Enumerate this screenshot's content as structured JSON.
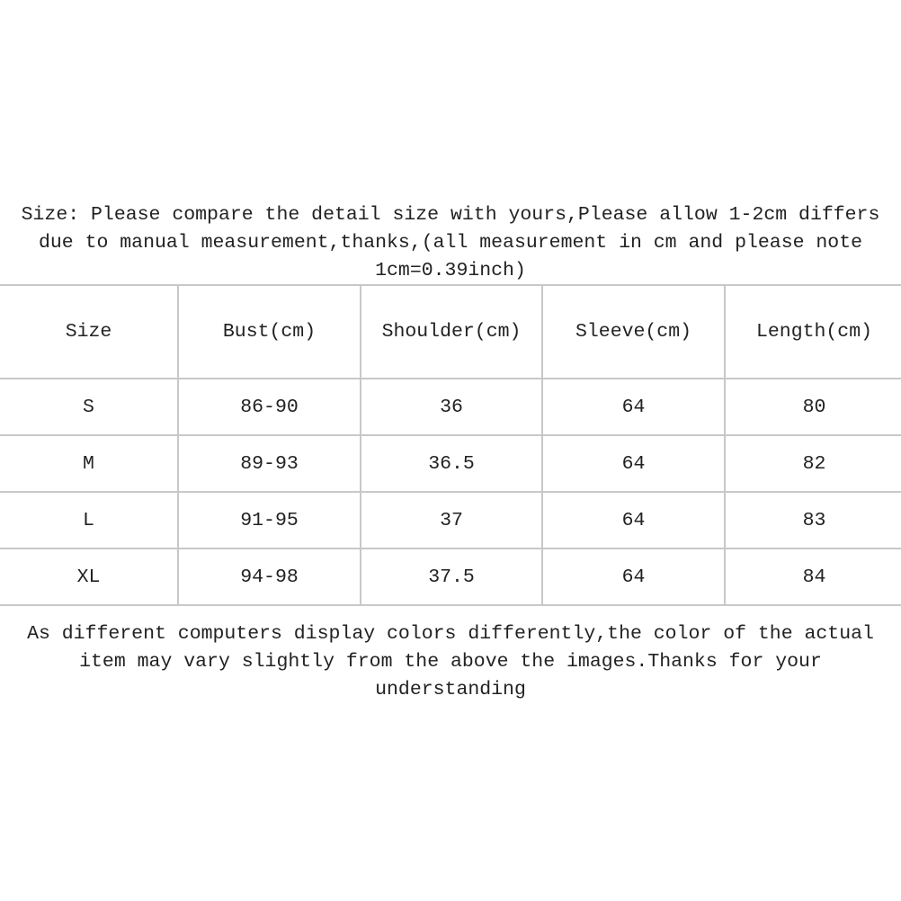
{
  "intro": {
    "line1": "Size: Please compare the detail size with yours,Please allow 1-2cm differs",
    "line2": "due to manual measurement,thanks,(all measurement in cm and please note",
    "line3": "1cm=0.39inch)"
  },
  "table": {
    "headers": [
      "Size",
      "Bust(cm)",
      "Shoulder(cm)",
      "Sleeve(cm)",
      "Length(cm)"
    ],
    "rows": [
      [
        "S",
        "86-90",
        "36",
        "64",
        "80"
      ],
      [
        "M",
        "89-93",
        "36.5",
        "64",
        "82"
      ],
      [
        "L",
        "91-95",
        "37",
        "64",
        "83"
      ],
      [
        "XL",
        "94-98",
        "37.5",
        "64",
        "84"
      ]
    ]
  },
  "note": {
    "line1": "As different computers display colors differently,the color of the actual",
    "line2": "item may vary slightly from the above the images.Thanks for your",
    "line3": "understanding"
  }
}
